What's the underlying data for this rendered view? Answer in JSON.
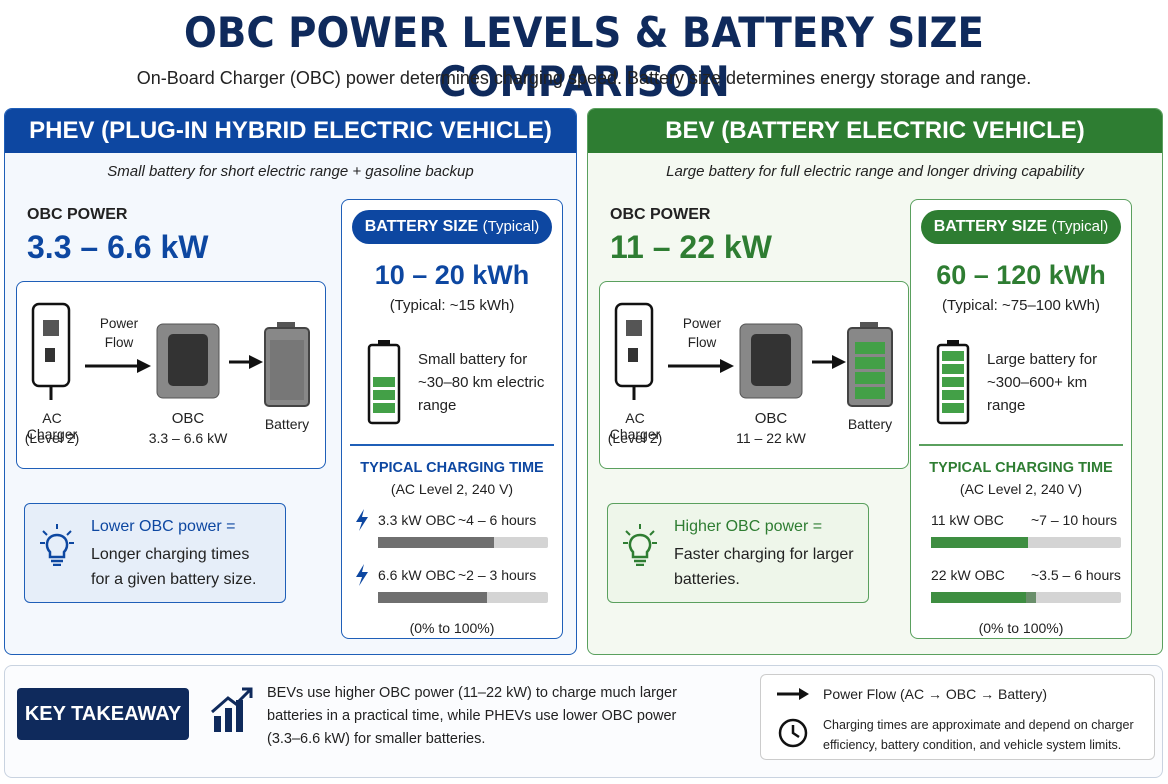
{
  "title": "OBC POWER LEVELS & BATTERY SIZE COMPARISON",
  "subtitle": "On-Board Charger (OBC) power determines charging speed. Battery size determines energy storage and range.",
  "panels": [
    {
      "header": "PHEV (PLUG-IN HYBRID ELECTRIC VEHICLE)",
      "tagline": "Small battery for short electric range + gasoline backup",
      "obc_label": "OBC POWER",
      "obc_power": "3.3 – 6.6 kW",
      "flow_label": "Power Flow",
      "charger_label": "AC Charger",
      "charger_sub": "(Level 2)",
      "obc_name": "OBC",
      "obc_sub": "3.3 – 6.6 kW",
      "battery_label": "Battery",
      "battery_size_label": "BATTERY SIZE",
      "battery_size_note": "(Typical)",
      "capacity": "10 – 20 kWh",
      "capacity_typical": "(Typical: ~15 kWh)",
      "range_note": "Small battery for ~30–80 km electric range",
      "charging_title": "TYPICAL CHARGING TIME",
      "charging_sub": "(AC Level 2, 240 V)",
      "rows": [
        {
          "label": "3.3 kW OBC",
          "time": "~4 – 6 hours"
        },
        {
          "label": "6.6 kW OBC",
          "time": "~2 – 3 hours"
        }
      ],
      "charge_range": "(0% to 100%)",
      "tip_head": "Lower OBC power =",
      "tip_body": "Longer charging times for a given battery size."
    },
    {
      "header": "BEV (BATTERY ELECTRIC VEHICLE)",
      "tagline": "Large battery for full electric range and longer driving capability",
      "obc_label": "OBC POWER",
      "obc_power": "11 – 22 kW",
      "flow_label": "Power Flow",
      "charger_label": "AC Charger",
      "charger_sub": "(Level 2)",
      "obc_name": "OBC",
      "obc_sub": "11 – 22 kW",
      "battery_label": "Battery",
      "battery_size_label": "BATTERY SIZE",
      "battery_size_note": "(Typical)",
      "capacity": "60 – 120 kWh",
      "capacity_typical": "(Typical: ~75–100 kWh)",
      "range_note": "Large battery for ~300–600+ km range",
      "charging_title": "TYPICAL CHARGING TIME",
      "charging_sub": "(AC Level 2, 240 V)",
      "rows": [
        {
          "label": "11 kW OBC",
          "time": "~7 – 10 hours"
        },
        {
          "label": "22 kW OBC",
          "time": "~3.5 – 6 hours"
        }
      ],
      "charge_range": "(0% to 100%)",
      "tip_head": "Higher OBC power =",
      "tip_body": "Faster charging for larger batteries."
    }
  ],
  "takeaway_label": "KEY TAKEAWAY",
  "takeaway_text": "BEVs use higher OBC power (11–22 kW) to charge much larger batteries in a practical time, while PHEVs use lower OBC power (3.3–6.6 kW) for smaller batteries.",
  "legend": [
    {
      "text": "Power Flow (AC → OBC → Battery)"
    },
    {
      "text": "Charging times are approximate and depend on charger efficiency, battery condition, and vehicle system limits."
    }
  ]
}
